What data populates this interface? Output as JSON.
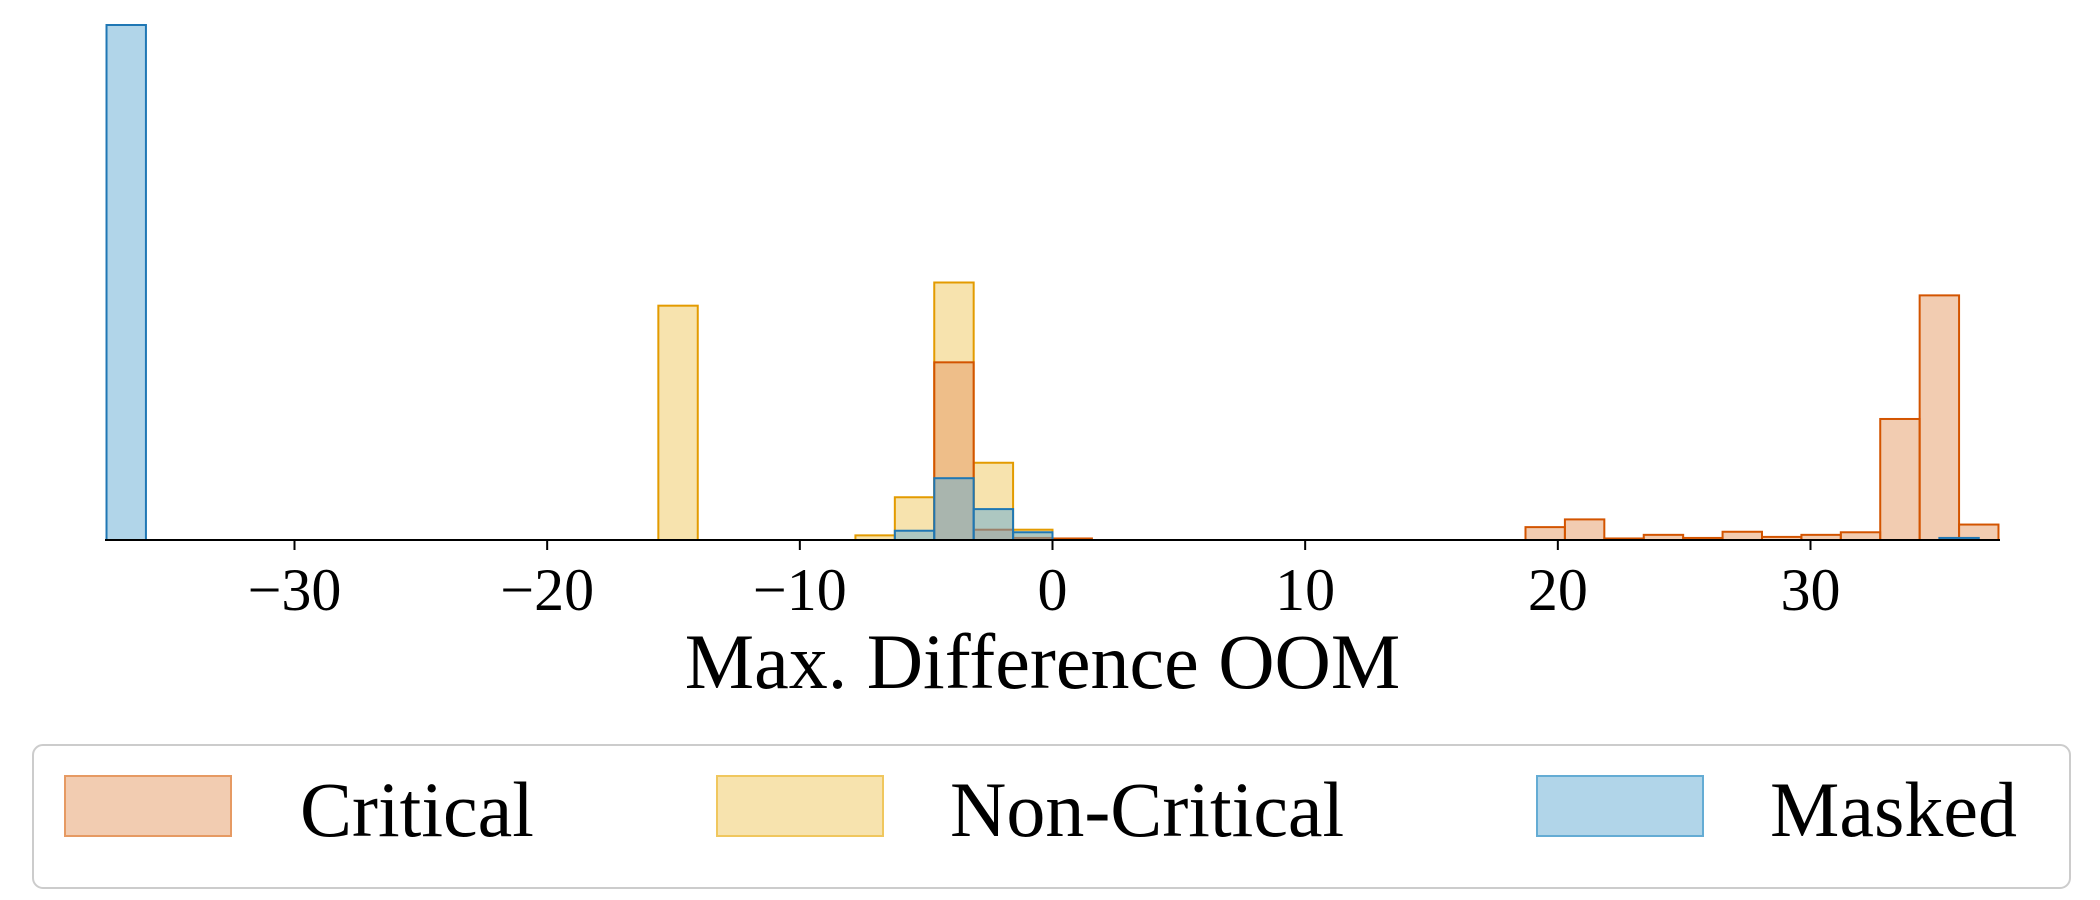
{
  "chart_data": {
    "type": "histogram",
    "title": "",
    "xlabel": "Max. Difference OOM",
    "ylabel": "",
    "xlim": [
      -37.5,
      37.5
    ],
    "ylim": [
      0,
      1.0
    ],
    "bin_width": 1.56,
    "x_ticks": [
      -30,
      -20,
      -10,
      0,
      10,
      20,
      30
    ],
    "x_tick_labels": [
      "−30",
      "−20",
      "−10",
      "0",
      "10",
      "20",
      "30"
    ],
    "y_axis_visible": false,
    "grid": false,
    "legend": {
      "placement": "bottom",
      "columns": 3
    },
    "series": [
      {
        "name": "Non-Critical",
        "color": "#f0c75e",
        "edge_color": "#e39b00",
        "fill_opacity": 0.5,
        "bins": [
          [
            -15.6,
            0.455
          ],
          [
            -7.8,
            0.009
          ],
          [
            -6.24,
            0.083
          ],
          [
            -4.68,
            0.5
          ],
          [
            -3.12,
            0.15
          ],
          [
            -1.56,
            0.02
          ]
        ]
      },
      {
        "name": "Critical",
        "color": "#e69a63",
        "edge_color": "#d35400",
        "fill_opacity": 0.5,
        "bins": [
          [
            -4.68,
            0.345
          ],
          [
            -3.12,
            0.02
          ],
          [
            -1.56,
            0.004
          ],
          [
            0.0,
            0.003
          ],
          [
            18.72,
            0.025
          ],
          [
            20.28,
            0.04
          ],
          [
            21.84,
            0.003
          ],
          [
            23.4,
            0.01
          ],
          [
            24.96,
            0.004
          ],
          [
            26.52,
            0.016
          ],
          [
            28.08,
            0.006
          ],
          [
            29.64,
            0.01
          ],
          [
            31.2,
            0.015
          ],
          [
            32.76,
            0.235
          ],
          [
            34.32,
            0.475
          ],
          [
            35.88,
            0.03
          ]
        ]
      },
      {
        "name": "Masked",
        "color": "#64acd4",
        "edge_color": "#1f77b4",
        "fill_opacity": 0.5,
        "bins": [
          [
            -37.44,
            1.0
          ],
          [
            -6.24,
            0.018
          ],
          [
            -4.68,
            0.12
          ],
          [
            -3.12,
            0.06
          ],
          [
            -1.56,
            0.015
          ],
          [
            35.1,
            0.004
          ]
        ]
      }
    ]
  }
}
